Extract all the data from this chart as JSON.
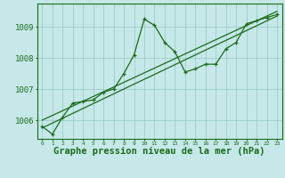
{
  "title": "Graphe pression niveau de la mer (hPa)",
  "bg_color": "#c6e8e8",
  "line_color": "#1a6b1a",
  "grid_color": "#96c8c8",
  "xlim": [
    -0.5,
    23.5
  ],
  "ylim": [
    1005.4,
    1009.75
  ],
  "yticks": [
    1006,
    1007,
    1008,
    1009
  ],
  "xticks": [
    0,
    1,
    2,
    3,
    4,
    5,
    6,
    7,
    8,
    9,
    10,
    11,
    12,
    13,
    14,
    15,
    16,
    17,
    18,
    19,
    20,
    21,
    22,
    23
  ],
  "line1_x": [
    0,
    1,
    2,
    3,
    4,
    5,
    6,
    7,
    8,
    9,
    10,
    11,
    12,
    13,
    14,
    15,
    16,
    17,
    18,
    19,
    20,
    21,
    22,
    23
  ],
  "line1_y": [
    1005.8,
    1005.55,
    1006.1,
    1006.55,
    1006.6,
    1006.65,
    1006.9,
    1007.0,
    1007.5,
    1008.1,
    1009.25,
    1009.05,
    1008.5,
    1008.2,
    1007.55,
    1007.65,
    1007.8,
    1007.8,
    1008.3,
    1008.5,
    1009.1,
    1009.2,
    1009.3,
    1009.4
  ],
  "line2_x": [
    0,
    23
  ],
  "line2_y": [
    1005.75,
    1009.35
  ],
  "line3_x": [
    0,
    23
  ],
  "line3_y": [
    1006.0,
    1009.5
  ],
  "xlabel_fontsize": 7.5,
  "tick_fontsize": 6.5,
  "xtick_fontsize": 4.5
}
